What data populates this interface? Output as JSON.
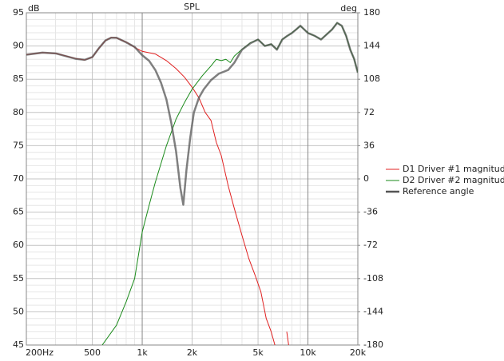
{
  "chart_data": {
    "type": "line",
    "title": "SPL",
    "y_label": "dB",
    "y2_label": "deg",
    "xscale": "log",
    "xlim": [
      200,
      20000
    ],
    "xticks": [
      {
        "value": 200,
        "label": "200Hz"
      },
      500,
      {
        "value": 1000,
        "label": "1k"
      },
      {
        "value": 2000,
        "label": "2k"
      },
      {
        "value": 5000,
        "label": "5k"
      },
      {
        "value": 10000,
        "label": "10k"
      },
      {
        "value": 20000,
        "label": "20k"
      }
    ],
    "x_minor_ticks": [
      300,
      400,
      600,
      700,
      800,
      900,
      3000,
      4000,
      6000,
      7000,
      8000,
      9000
    ],
    "ylim": [
      45,
      95
    ],
    "yticks": [
      45,
      50,
      55,
      60,
      65,
      70,
      75,
      80,
      85,
      90,
      95
    ],
    "y_minor_ticks": [
      46,
      47,
      48,
      49,
      51,
      52,
      53,
      54,
      56,
      57,
      58,
      59,
      61,
      62,
      63,
      64,
      66,
      67,
      68,
      69,
      71,
      72,
      73,
      74,
      76,
      77,
      78,
      79,
      81,
      82,
      83,
      84,
      86,
      87,
      88,
      89,
      91,
      92,
      93,
      94
    ],
    "y2lim": [
      -180,
      180
    ],
    "y2ticks": [
      -180,
      -144,
      -108,
      -72,
      -36,
      0,
      36,
      72,
      108,
      144,
      180
    ],
    "grid": true,
    "legend": "right",
    "series": [
      {
        "name": "D1 Driver #1 magnitude",
        "color": "#e02020",
        "width": 1,
        "x": [
          200,
          250,
          300,
          400,
          450,
          500,
          550,
          600,
          650,
          700,
          800,
          900,
          1000,
          1200,
          1400,
          1600,
          1800,
          2000,
          2200,
          2400,
          2600,
          2800,
          3000,
          3300,
          3600,
          4000,
          4400,
          4800,
          5200,
          5600,
          6000,
          6400,
          7200,
          7450,
          7700
        ],
        "values": [
          88.7,
          89.0,
          88.9,
          88.1,
          87.9,
          88.3,
          89.7,
          90.8,
          91.3,
          91.2,
          90.6,
          89.8,
          89.2,
          88.8,
          87.8,
          86.6,
          85.3,
          83.8,
          82.2,
          80.0,
          78.8,
          75.5,
          73.5,
          69,
          65.5,
          61.5,
          58,
          55.5,
          53,
          49,
          47,
          44.5,
          null,
          47,
          44.5
        ]
      },
      {
        "name": "D2 Driver #2 magnitude",
        "color": "#1a8a1a",
        "width": 1,
        "x": [
          574,
          700,
          800,
          900,
          1000,
          1100,
          1200,
          1400,
          1600,
          1800,
          2000,
          2300,
          2600,
          2800,
          3000,
          3200,
          3400,
          3600,
          4000,
          4500,
          5000,
          5500,
          6000,
          6500,
          7000,
          7500,
          8000,
          8500,
          9000,
          10000,
          11000,
          12000,
          14000,
          15000,
          16000,
          17000,
          18000,
          19000,
          20000
        ],
        "values": [
          45,
          48,
          51.5,
          55,
          62,
          66,
          69.5,
          75,
          79,
          81.5,
          83.5,
          85.5,
          87,
          88,
          87.8,
          88,
          87.5,
          88.5,
          89.5,
          90.5,
          91,
          90,
          90.3,
          89.5,
          91,
          91.5,
          92,
          92.5,
          93,
          92,
          91.5,
          91,
          92.5,
          93.5,
          93,
          91.5,
          89.5,
          88,
          86
        ]
      },
      {
        "name": "Reference angle",
        "color": "#555555",
        "width": 2.5,
        "axis": "y2",
        "x": [
          200,
          250,
          300,
          400,
          450,
          500,
          550,
          600,
          650,
          700,
          800,
          900,
          1000,
          1100,
          1200,
          1300,
          1400,
          1500,
          1600,
          1700,
          1770,
          1850,
          1950,
          2050,
          2200,
          2350,
          2600,
          2900,
          3300,
          3600,
          4000,
          4500,
          5000,
          5500,
          6000,
          6500,
          7000,
          7500,
          8000,
          8500,
          9000,
          10000,
          11000,
          12000,
          14000,
          15000,
          16000,
          17000,
          18000,
          19000,
          20000
        ],
        "values": [
          134.6,
          136.8,
          136,
          130,
          129,
          132,
          142,
          150,
          153,
          153,
          148,
          143,
          134,
          128,
          118,
          104,
          86,
          60,
          30,
          -10,
          -28,
          10,
          45,
          72,
          88,
          97,
          107,
          114,
          118,
          126,
          140,
          147,
          151,
          144,
          146,
          140,
          151,
          155,
          158,
          162,
          166,
          158,
          155,
          151,
          162,
          169,
          166,
          155,
          140,
          130,
          115
        ]
      }
    ]
  }
}
